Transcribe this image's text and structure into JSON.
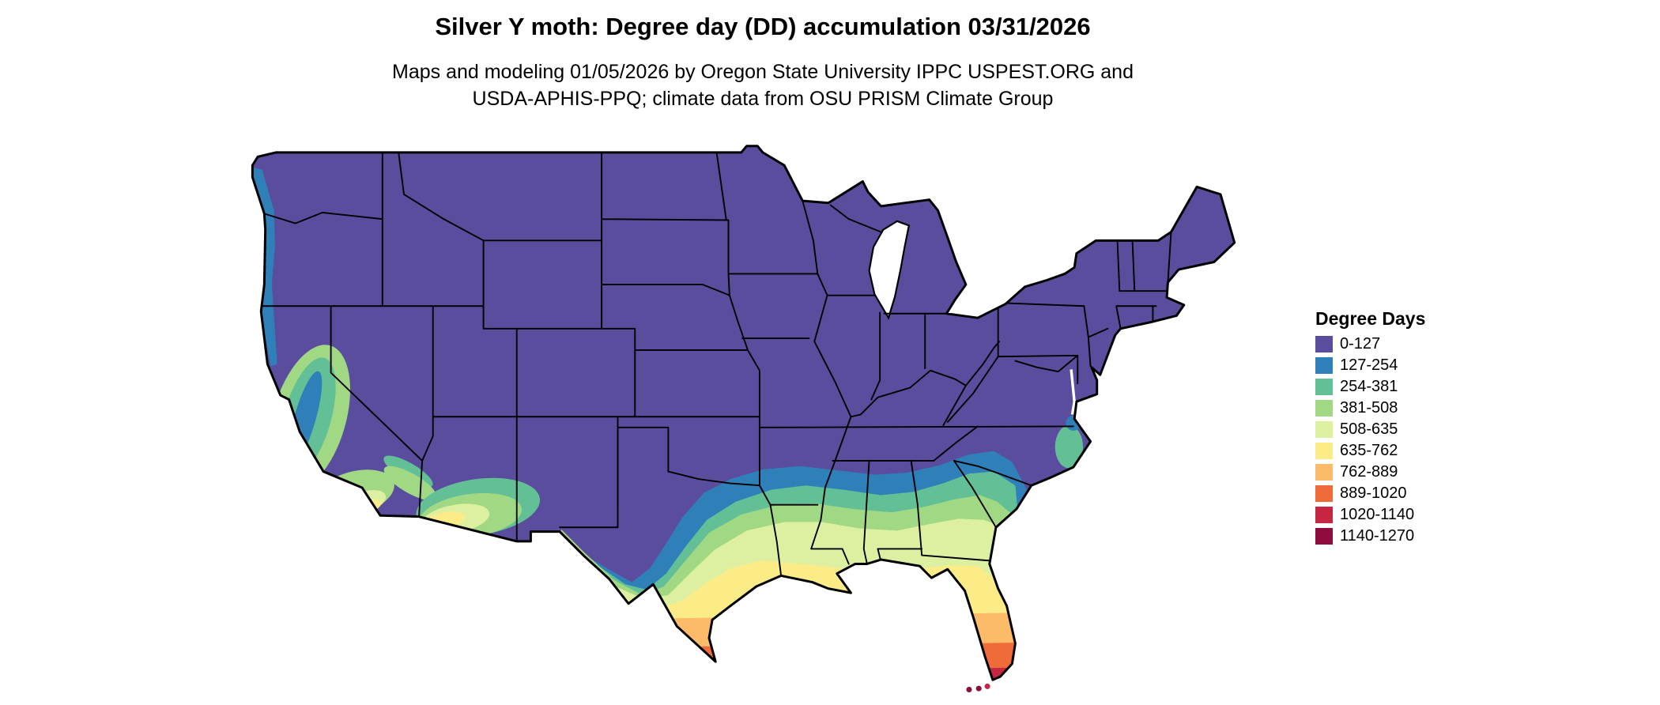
{
  "page": {
    "title": "Silver Y moth: Degree day (DD) accumulation 03/31/2026",
    "subtitle_line1": "Maps and modeling 01/05/2026 by Oregon State University IPPC USPEST.ORG and",
    "subtitle_line2": "USDA-APHIS-PPQ; climate data from OSU PRISM Climate Group"
  },
  "legend": {
    "title": "Degree Days"
  },
  "chart_data": {
    "type": "choropleth",
    "region": "Contiguous United States with state boundaries",
    "variable": "Degree day (DD) accumulation for Silver Y moth as of 03/31/2026",
    "legend_title": "Degree Days",
    "legend_position": "right",
    "bins": [
      {
        "label": "0-127",
        "color": "#5A4D9E"
      },
      {
        "label": "127-254",
        "color": "#2F80B9"
      },
      {
        "label": "254-381",
        "color": "#63C096"
      },
      {
        "label": "381-508",
        "color": "#A1D883"
      },
      {
        "label": "508-635",
        "color": "#DDF0A1"
      },
      {
        "label": "635-762",
        "color": "#FBEC88"
      },
      {
        "label": "762-889",
        "color": "#FBBB69"
      },
      {
        "label": "889-1020",
        "color": "#EF6C3A"
      },
      {
        "label": "1020-1140",
        "color": "#C52742"
      },
      {
        "label": "1140-1270",
        "color": "#8D0D3E"
      }
    ],
    "pattern": "Most of the northern and central US is in the lowest bin (0-127). Values increase southward across Texas, the Gulf Coast and the Southeast. Warmest accumulations occur in south Texas and peninsular Florida, reaching 1140-1270 at the Florida Keys. Elevated values also appear along the Pacific Northwest coast, California's Central Valley and coast, southern Arizona deserts, the Rio Grande valley, and the North Carolina coast."
  }
}
